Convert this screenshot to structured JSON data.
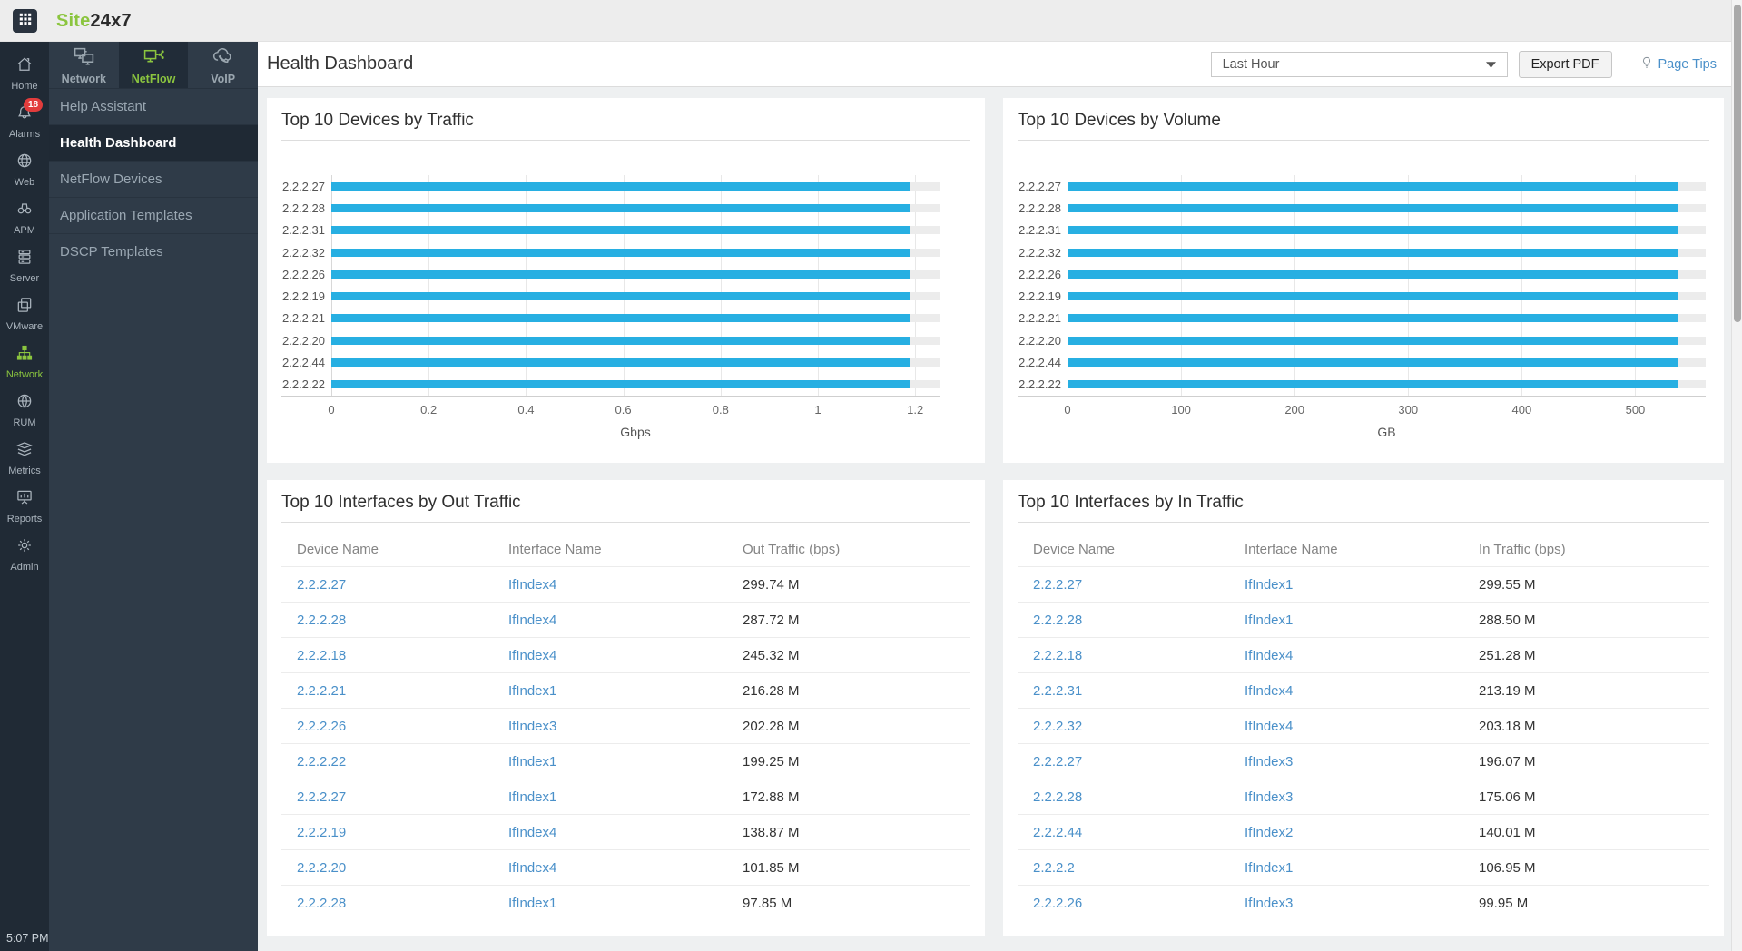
{
  "topbar": {
    "logo_green": "Site",
    "logo_dark": "24x7"
  },
  "sidebar": {
    "items": [
      {
        "label": "Home",
        "icon": "home-icon"
      },
      {
        "label": "Alarms",
        "icon": "bell-icon",
        "badge": "18"
      },
      {
        "label": "Web",
        "icon": "globe-icon"
      },
      {
        "label": "APM",
        "icon": "binoculars-icon"
      },
      {
        "label": "Server",
        "icon": "server-icon"
      },
      {
        "label": "VMware",
        "icon": "vmware-layers-icon"
      },
      {
        "label": "Network",
        "icon": "network-tree-icon",
        "active": true
      },
      {
        "label": "RUM",
        "icon": "rum-globe-icon"
      },
      {
        "label": "Metrics",
        "icon": "metrics-layers-icon"
      },
      {
        "label": "Reports",
        "icon": "report-board-icon"
      },
      {
        "label": "Admin",
        "icon": "gear-icon"
      }
    ],
    "time": "5:07 PM"
  },
  "subnav": {
    "tabs": [
      {
        "label": "Network",
        "icon": "monitors-icon"
      },
      {
        "label": "NetFlow",
        "icon": "netflow-icon",
        "active": true
      },
      {
        "label": "VoIP",
        "icon": "voip-cloud-icon"
      }
    ],
    "menu": [
      {
        "label": "Help Assistant"
      },
      {
        "label": "Health Dashboard",
        "active": true
      },
      {
        "label": "NetFlow Devices"
      },
      {
        "label": "Application Templates"
      },
      {
        "label": "DSCP Templates"
      }
    ]
  },
  "header": {
    "title": "Health Dashboard",
    "range_value": "Last Hour",
    "export_label": "Export PDF",
    "page_tips_label": "Page Tips"
  },
  "colors": {
    "accent_green": "#8bc53f",
    "bar_blue": "#27afe2",
    "link_blue": "#4a90c9",
    "badge_red": "#e23c3c"
  },
  "chart_data": [
    {
      "type": "bar",
      "orientation": "horizontal",
      "title": "Top 10 Devices by Traffic",
      "categories": [
        "2.2.2.27",
        "2.2.2.28",
        "2.2.2.31",
        "2.2.2.32",
        "2.2.2.26",
        "2.2.2.19",
        "2.2.2.21",
        "2.2.2.20",
        "2.2.2.44",
        "2.2.2.22"
      ],
      "values": [
        1.19,
        1.19,
        1.19,
        1.19,
        1.19,
        1.19,
        1.19,
        1.19,
        1.19,
        1.19
      ],
      "xlabel": "Gbps",
      "xticks": [
        0,
        0.2,
        0.4,
        0.6,
        0.8,
        1,
        1.2
      ],
      "xlim": [
        0,
        1.25
      ],
      "grid": true,
      "legend": false,
      "bar_color": "#27afe2",
      "track_color": "#ececec"
    },
    {
      "type": "bar",
      "orientation": "horizontal",
      "title": "Top 10 Devices by Volume",
      "categories": [
        "2.2.2.27",
        "2.2.2.28",
        "2.2.2.31",
        "2.2.2.32",
        "2.2.2.26",
        "2.2.2.19",
        "2.2.2.21",
        "2.2.2.20",
        "2.2.2.44",
        "2.2.2.22"
      ],
      "values": [
        537,
        537,
        537,
        537,
        537,
        537,
        537,
        537,
        537,
        537
      ],
      "xlabel": "GB",
      "xticks": [
        0,
        100,
        200,
        300,
        400,
        500
      ],
      "xlim": [
        0,
        562
      ],
      "grid": true,
      "legend": false,
      "bar_color": "#27afe2",
      "track_color": "#ececec"
    }
  ],
  "tables": [
    {
      "title": "Top 10 Interfaces by Out Traffic",
      "columns": [
        "Device Name",
        "Interface Name",
        "Out Traffic (bps)"
      ],
      "rows": [
        [
          "2.2.2.27",
          "IfIndex4",
          "299.74 M"
        ],
        [
          "2.2.2.28",
          "IfIndex4",
          "287.72 M"
        ],
        [
          "2.2.2.18",
          "IfIndex4",
          "245.32 M"
        ],
        [
          "2.2.2.21",
          "IfIndex1",
          "216.28 M"
        ],
        [
          "2.2.2.26",
          "IfIndex3",
          "202.28 M"
        ],
        [
          "2.2.2.22",
          "IfIndex1",
          "199.25 M"
        ],
        [
          "2.2.2.27",
          "IfIndex1",
          "172.88 M"
        ],
        [
          "2.2.2.19",
          "IfIndex4",
          "138.87 M"
        ],
        [
          "2.2.2.20",
          "IfIndex4",
          "101.85 M"
        ],
        [
          "2.2.2.28",
          "IfIndex1",
          "97.85 M"
        ]
      ]
    },
    {
      "title": "Top 10 Interfaces by In Traffic",
      "columns": [
        "Device Name",
        "Interface Name",
        "In Traffic (bps)"
      ],
      "rows": [
        [
          "2.2.2.27",
          "IfIndex1",
          "299.55 M"
        ],
        [
          "2.2.2.28",
          "IfIndex1",
          "288.50 M"
        ],
        [
          "2.2.2.18",
          "IfIndex4",
          "251.28 M"
        ],
        [
          "2.2.2.31",
          "IfIndex4",
          "213.19 M"
        ],
        [
          "2.2.2.32",
          "IfIndex4",
          "203.18 M"
        ],
        [
          "2.2.2.27",
          "IfIndex3",
          "196.07 M"
        ],
        [
          "2.2.2.28",
          "IfIndex3",
          "175.06 M"
        ],
        [
          "2.2.2.44",
          "IfIndex2",
          "140.01 M"
        ],
        [
          "2.2.2.2",
          "IfIndex1",
          "106.95 M"
        ],
        [
          "2.2.2.26",
          "IfIndex3",
          "99.95 M"
        ]
      ]
    }
  ]
}
